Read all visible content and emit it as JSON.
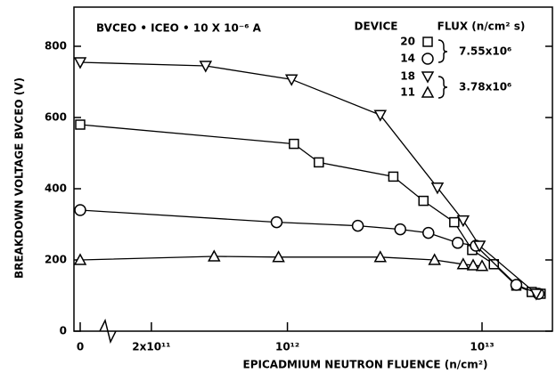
{
  "chart_data": {
    "type": "line",
    "annotation": "BVCEO • ICEO • 10 X 10⁻⁶ A",
    "x_label": "EPICADMIUM NEUTRON FLUENCE (n/cm²)",
    "y_label": "BREAKDOWN VOLTAGE BVCEO (V)",
    "log_x": true,
    "xlim": [
      80000000000.0,
      23000000000000.0
    ],
    "xticks": [
      0,
      {
        "value": 200000000000.0,
        "label": "2x10¹¹"
      },
      {
        "value": 1000000000000.0,
        "label": "10¹²"
      },
      {
        "value": 10000000000000.0,
        "label": "10¹³"
      }
    ],
    "ylim": [
      0,
      910
    ],
    "yticks": [
      0,
      200,
      400,
      600,
      800
    ],
    "legend_header": [
      "DEVICE",
      "FLUX (n/cm² s)"
    ],
    "flux_labels": [
      "7.55x10⁶",
      "3.78x10⁶"
    ],
    "series": [
      {
        "name": "20",
        "marker": "square",
        "color": "#000000",
        "x": [
          0,
          1080000000000.0,
          1450000000000.0,
          3500000000000.0,
          5000000000000.0,
          7200000000000.0,
          8900000000000.0,
          11500000000000.0,
          15000000000000.0,
          18000000000000.0,
          20000000000000.0
        ],
        "values": [
          580,
          526,
          474,
          434,
          366,
          306,
          228,
          188,
          128,
          110,
          105
        ]
      },
      {
        "name": "14",
        "marker": "circle",
        "color": "#000000",
        "x": [
          0,
          880000000000.0,
          2300000000000.0,
          3800000000000.0,
          5300000000000.0,
          7500000000000.0,
          9300000000000.0,
          15000000000000.0,
          19500000000000.0
        ],
        "values": [
          340,
          306,
          296,
          286,
          276,
          248,
          240,
          130,
          105
        ]
      },
      {
        "name": "18",
        "marker": "triangle-down",
        "color": "#000000",
        "x": [
          0,
          380000000000.0,
          1050000000000.0,
          3000000000000.0,
          5900000000000.0,
          8000000000000.0,
          9700000000000.0,
          19000000000000.0
        ],
        "values": [
          755,
          745,
          707,
          607,
          403,
          311,
          240,
          105
        ]
      },
      {
        "name": "11",
        "marker": "triangle-up",
        "color": "#000000",
        "x": [
          0,
          420000000000.0,
          900000000000.0,
          3000000000000.0,
          5700000000000.0,
          8000000000000.0,
          9000000000000.0,
          10000000000000.0
        ],
        "values": [
          200,
          210,
          208,
          208,
          200,
          188,
          185,
          183
        ]
      }
    ]
  }
}
